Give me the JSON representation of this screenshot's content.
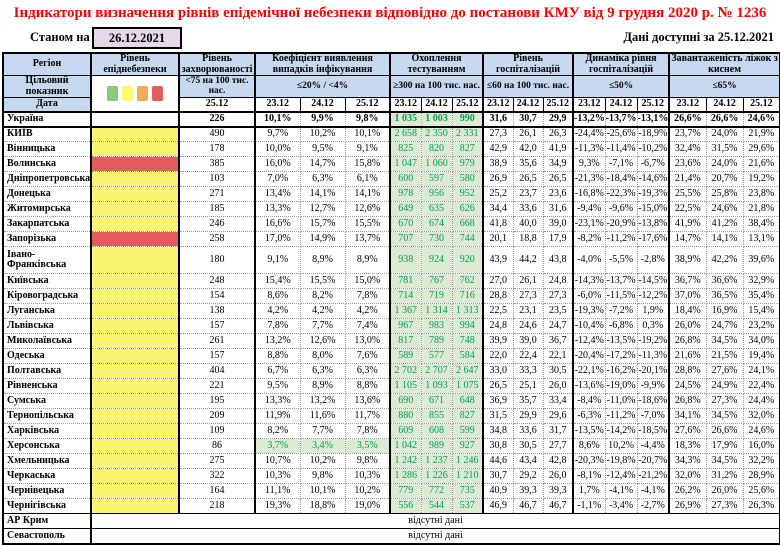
{
  "title": "Індикатори визначення рівнів епідемічної небезпеки відповідно до постанови КМУ від 9 грудня 2020 р. № 1236",
  "as_of": {
    "label": "Станом на",
    "date": "26.12.2021"
  },
  "data_available": "Дані доступні за 25.12.2021",
  "colors": {
    "title_red": "#ff0000",
    "header_bg": "#c6d9f1",
    "date_box_bg": "#e6d9ec",
    "danger_yellow": "#f9f56e",
    "danger_red": "#e25c5c",
    "met_target_bg": "#dcead3",
    "met_target_text": "#00a050",
    "legend": [
      "#8cc87c",
      "#fbf96e",
      "#f4a95c",
      "#e25d5d"
    ]
  },
  "table": {
    "region_label": "Регіон",
    "target_row_label": "Цільовий показник",
    "date_row_label": "Дата",
    "no_data_text": "відсутні дані",
    "legend_names": [
      "green-level",
      "yellow-level",
      "orange-level",
      "red-level"
    ],
    "groups": [
      {
        "id": "danger",
        "label": "Рівень епіднебезпеки",
        "target": "",
        "dates": []
      },
      {
        "id": "incidence",
        "label": "Рівень захворюваності",
        "target": "<75 на 100 тис. нас.",
        "dates": [
          "25.12"
        ]
      },
      {
        "id": "coef",
        "label": "Коефіцієнт виявлення випадків інфікування",
        "target": "≤20% / <4%",
        "dates": [
          "23.12",
          "24.12",
          "25.12"
        ]
      },
      {
        "id": "testing",
        "label": "Охоплення тестуванням",
        "target": "≥300 на 100 тис. нас.",
        "dates": [
          "23.12",
          "24.12",
          "25.12"
        ]
      },
      {
        "id": "hosp",
        "label": "Рівень госпіталізацій",
        "target": "≤60 на 100 тис. нас.",
        "dates": [
          "23.12",
          "24.12",
          "25.12"
        ]
      },
      {
        "id": "dyn",
        "label": "Динаміка рівня госпіталізацій",
        "target": "≤50%",
        "dates": [
          "23.12",
          "24.12",
          "25.12"
        ]
      },
      {
        "id": "beds",
        "label": "Завантаженість ліжок з киснем",
        "target": "≤65%",
        "dates": [
          "23.12",
          "24.12",
          "25.12"
        ]
      }
    ],
    "rows": [
      {
        "region": "Україна",
        "danger": "none",
        "total": true,
        "incidence": "226",
        "coef": [
          "10,1%",
          "9,9%",
          "9,8%"
        ],
        "testing": [
          "1 035",
          "1 003",
          "990"
        ],
        "hosp": [
          "31,6",
          "30,7",
          "29,9"
        ],
        "dyn": [
          "-13,2%",
          "-13,7%",
          "-13,1%"
        ],
        "beds": [
          "26,6%",
          "26,6%",
          "24,6%"
        ]
      },
      {
        "region": "КИЇВ",
        "danger": "yellow",
        "incidence": "490",
        "coef": [
          "9,7%",
          "10,2%",
          "10,1%"
        ],
        "testing": [
          "2 658",
          "2 350",
          "2 331"
        ],
        "hosp": [
          "27,3",
          "26,1",
          "26,3"
        ],
        "dyn": [
          "-24,4%",
          "-25,6%",
          "-18,9%"
        ],
        "beds": [
          "23,7%",
          "24,0%",
          "21,9%"
        ]
      },
      {
        "region": "Вінницька",
        "danger": "yellow",
        "incidence": "178",
        "coef": [
          "10,0%",
          "9,5%",
          "9,1%"
        ],
        "testing": [
          "825",
          "820",
          "827"
        ],
        "hosp": [
          "42,9",
          "42,0",
          "41,9"
        ],
        "dyn": [
          "-11,3%",
          "-11,4%",
          "-10,2%"
        ],
        "beds": [
          "32,4%",
          "31,5%",
          "29,6%"
        ]
      },
      {
        "region": "Волинська",
        "danger": "red",
        "incidence": "385",
        "coef": [
          "16,0%",
          "14,7%",
          "15,8%"
        ],
        "testing": [
          "1 047",
          "1 060",
          "979"
        ],
        "hosp": [
          "38,9",
          "35,6",
          "34,9"
        ],
        "dyn": [
          "9,3%",
          "-7,1%",
          "-6,7%"
        ],
        "beds": [
          "23,6%",
          "24,0%",
          "21,6%"
        ]
      },
      {
        "region": "Дніпропетровська",
        "danger": "yellow",
        "incidence": "103",
        "coef": [
          "7,0%",
          "6,3%",
          "6,1%"
        ],
        "testing": [
          "600",
          "597",
          "580"
        ],
        "hosp": [
          "26,9",
          "26,5",
          "26,5"
        ],
        "dyn": [
          "-21,3%",
          "-18,4%",
          "-14,6%"
        ],
        "beds": [
          "21,4%",
          "20,7%",
          "19,2%"
        ]
      },
      {
        "region": "Донецька",
        "danger": "yellow",
        "incidence": "271",
        "coef": [
          "13,4%",
          "14,1%",
          "14,1%"
        ],
        "testing": [
          "978",
          "956",
          "952"
        ],
        "hosp": [
          "25,2",
          "23,7",
          "23,6"
        ],
        "dyn": [
          "-16,8%",
          "-22,3%",
          "-19,3%"
        ],
        "beds": [
          "25,5%",
          "25,8%",
          "23,8%"
        ]
      },
      {
        "region": "Житомирська",
        "danger": "yellow",
        "incidence": "185",
        "coef": [
          "13,3%",
          "12,7%",
          "12,6%"
        ],
        "testing": [
          "649",
          "635",
          "626"
        ],
        "hosp": [
          "34,4",
          "33,6",
          "31,6"
        ],
        "dyn": [
          "-9,4%",
          "-9,6%",
          "-15,0%"
        ],
        "beds": [
          "22,5%",
          "24,6%",
          "21,8%"
        ]
      },
      {
        "region": "Закарпатська",
        "danger": "yellow",
        "incidence": "246",
        "coef": [
          "16,6%",
          "15,7%",
          "15,5%"
        ],
        "testing": [
          "670",
          "674",
          "668"
        ],
        "hosp": [
          "41,8",
          "40,0",
          "39,0"
        ],
        "dyn": [
          "-23,1%",
          "-20,9%",
          "-13,8%"
        ],
        "beds": [
          "41,9%",
          "41,2%",
          "38,4%"
        ]
      },
      {
        "region": "Запорізька",
        "danger": "red",
        "incidence": "258",
        "coef": [
          "17,0%",
          "14,9%",
          "13,7%"
        ],
        "testing": [
          "707",
          "730",
          "744"
        ],
        "hosp": [
          "20,1",
          "18,8",
          "17,9"
        ],
        "dyn": [
          "-8,2%",
          "-11,2%",
          "-17,6%"
        ],
        "beds": [
          "14,7%",
          "14,1%",
          "13,1%"
        ]
      },
      {
        "region": "Івано-Франківська",
        "danger": "yellow",
        "tall": true,
        "incidence": "180",
        "coef": [
          "9,1%",
          "8,9%",
          "8,9%"
        ],
        "testing": [
          "938",
          "924",
          "920"
        ],
        "hosp": [
          "43,9",
          "44,2",
          "43,8"
        ],
        "dyn": [
          "-4,0%",
          "-5,5%",
          "-2,8%"
        ],
        "beds": [
          "38,9%",
          "42,2%",
          "39,6%"
        ]
      },
      {
        "region": "Київська",
        "danger": "yellow",
        "incidence": "248",
        "coef": [
          "15,4%",
          "15,5%",
          "15,0%"
        ],
        "testing": [
          "781",
          "767",
          "762"
        ],
        "hosp": [
          "27,0",
          "26,1",
          "24,8"
        ],
        "dyn": [
          "-14,3%",
          "-13,7%",
          "-14,5%"
        ],
        "beds": [
          "36,7%",
          "36,6%",
          "32,9%"
        ]
      },
      {
        "region": "Кіровоградська",
        "danger": "yellow",
        "incidence": "154",
        "coef": [
          "8,6%",
          "8,2%",
          "7,8%"
        ],
        "testing": [
          "714",
          "719",
          "716"
        ],
        "hosp": [
          "28,8",
          "27,3",
          "27,3"
        ],
        "dyn": [
          "-6,0%",
          "-11,5%",
          "-12,2%"
        ],
        "beds": [
          "37,0%",
          "36,5%",
          "35,4%"
        ]
      },
      {
        "region": "Луганська",
        "danger": "yellow",
        "incidence": "138",
        "coef": [
          "4,2%",
          "4,2%",
          "4,2%"
        ],
        "testing": [
          "1 367",
          "1 314",
          "1 313"
        ],
        "hosp": [
          "22,5",
          "23,1",
          "23,5"
        ],
        "dyn": [
          "-19,3%",
          "-7,2%",
          "1,9%"
        ],
        "beds": [
          "18,4%",
          "16,9%",
          "15,4%"
        ]
      },
      {
        "region": "Львівська",
        "danger": "yellow",
        "incidence": "157",
        "coef": [
          "7,8%",
          "7,7%",
          "7,4%"
        ],
        "testing": [
          "967",
          "983",
          "994"
        ],
        "hosp": [
          "24,8",
          "24,6",
          "24,7"
        ],
        "dyn": [
          "-10,4%",
          "-6,8%",
          "0,3%"
        ],
        "beds": [
          "26,0%",
          "24,7%",
          "23,2%"
        ]
      },
      {
        "region": "Миколаївська",
        "danger": "yellow",
        "incidence": "261",
        "coef": [
          "13,2%",
          "12,6%",
          "13,0%"
        ],
        "testing": [
          "817",
          "789",
          "748"
        ],
        "hosp": [
          "39,9",
          "39,0",
          "36,7"
        ],
        "dyn": [
          "-12,4%",
          "-13,5%",
          "-19,2%"
        ],
        "beds": [
          "26,8%",
          "34,5%",
          "34,0%"
        ]
      },
      {
        "region": "Одеська",
        "danger": "yellow",
        "incidence": "157",
        "coef": [
          "8,8%",
          "8,0%",
          "7,6%"
        ],
        "testing": [
          "589",
          "577",
          "584"
        ],
        "hosp": [
          "22,0",
          "22,4",
          "22,1"
        ],
        "dyn": [
          "-20,4%",
          "-17,2%",
          "-11,3%"
        ],
        "beds": [
          "21,6%",
          "21,5%",
          "19,4%"
        ]
      },
      {
        "region": "Полтавська",
        "danger": "yellow",
        "incidence": "404",
        "coef": [
          "6,7%",
          "6,3%",
          "6,3%"
        ],
        "testing": [
          "2 702",
          "2 707",
          "2 647"
        ],
        "hosp": [
          "33,0",
          "33,3",
          "30,5"
        ],
        "dyn": [
          "-22,1%",
          "-16,2%",
          "-20,1%"
        ],
        "beds": [
          "28,8%",
          "27,6%",
          "24,1%"
        ]
      },
      {
        "region": "Рівненська",
        "danger": "yellow",
        "incidence": "221",
        "coef": [
          "9,5%",
          "8,9%",
          "8,8%"
        ],
        "testing": [
          "1 105",
          "1 093",
          "1 075"
        ],
        "hosp": [
          "26,5",
          "25,1",
          "26,0"
        ],
        "dyn": [
          "-13,6%",
          "-19,0%",
          "-9,9%"
        ],
        "beds": [
          "24,5%",
          "24,9%",
          "22,4%"
        ]
      },
      {
        "region": "Сумська",
        "danger": "yellow",
        "incidence": "195",
        "coef": [
          "13,3%",
          "13,2%",
          "13,6%"
        ],
        "testing": [
          "690",
          "671",
          "648"
        ],
        "hosp": [
          "36,9",
          "35,7",
          "33,4"
        ],
        "dyn": [
          "-8,4%",
          "-11,0%",
          "-18,6%"
        ],
        "beds": [
          "26,8%",
          "27,3%",
          "24,4%"
        ]
      },
      {
        "region": "Тернопільська",
        "danger": "yellow",
        "incidence": "209",
        "coef": [
          "11,9%",
          "11,6%",
          "11,7%"
        ],
        "testing": [
          "880",
          "855",
          "827"
        ],
        "hosp": [
          "31,5",
          "29,9",
          "29,6"
        ],
        "dyn": [
          "-6,3%",
          "-11,2%",
          "-7,0%"
        ],
        "beds": [
          "34,1%",
          "34,5%",
          "32,0%"
        ]
      },
      {
        "region": "Харківська",
        "danger": "yellow",
        "incidence": "109",
        "coef": [
          "8,2%",
          "7,7%",
          "7,8%"
        ],
        "testing": [
          "609",
          "608",
          "599"
        ],
        "hosp": [
          "34,8",
          "33,6",
          "31,7"
        ],
        "dyn": [
          "-13,5%",
          "-14,2%",
          "-18,5%"
        ],
        "beds": [
          "27,6%",
          "26,6%",
          "24,6%"
        ]
      },
      {
        "region": "Херсонська",
        "danger": "yellow",
        "coef_green": true,
        "incidence": "86",
        "coef": [
          "3,7%",
          "3,4%",
          "3,5%"
        ],
        "testing": [
          "1 042",
          "989",
          "927"
        ],
        "hosp": [
          "30,8",
          "30,5",
          "27,7"
        ],
        "dyn": [
          "8,6%",
          "10,2%",
          "-4,4%"
        ],
        "beds": [
          "18,3%",
          "17,9%",
          "16,0%"
        ]
      },
      {
        "region": "Хмельницька",
        "danger": "yellow",
        "incidence": "275",
        "coef": [
          "10,7%",
          "10,2%",
          "9,8%"
        ],
        "testing": [
          "1 242",
          "1 237",
          "1 246"
        ],
        "hosp": [
          "44,6",
          "43,4",
          "42,8"
        ],
        "dyn": [
          "-20,3%",
          "-19,8%",
          "-20,7%"
        ],
        "beds": [
          "34,3%",
          "34,5%",
          "32,2%"
        ]
      },
      {
        "region": "Черкаська",
        "danger": "yellow",
        "incidence": "322",
        "coef": [
          "10,3%",
          "9,8%",
          "10,3%"
        ],
        "testing": [
          "1 286",
          "1 226",
          "1 210"
        ],
        "hosp": [
          "30,7",
          "29,2",
          "26,0"
        ],
        "dyn": [
          "-8,1%",
          "-12,4%",
          "-21,2%"
        ],
        "beds": [
          "32,0%",
          "31,2%",
          "28,9%"
        ]
      },
      {
        "region": "Чернівецька",
        "danger": "yellow",
        "incidence": "164",
        "coef": [
          "11,1%",
          "10,1%",
          "10,2%"
        ],
        "testing": [
          "779",
          "772",
          "735"
        ],
        "hosp": [
          "40,9",
          "39,3",
          "39,3"
        ],
        "dyn": [
          "1,7%",
          "-4,1%",
          "-4,1%"
        ],
        "beds": [
          "26,2%",
          "26,0%",
          "25,6%"
        ]
      },
      {
        "region": "Чернігівська",
        "danger": "yellow",
        "incidence": "218",
        "coef": [
          "19,3%",
          "18,8%",
          "19,0%"
        ],
        "testing": [
          "556",
          "544",
          "537"
        ],
        "hosp": [
          "46,9",
          "46,7",
          "46,7"
        ],
        "dyn": [
          "-1,1%",
          "-3,4%",
          "-2,7%"
        ],
        "beds": [
          "26,9%",
          "27,3%",
          "26,3%"
        ]
      },
      {
        "region": "АР Крим",
        "no_data": true
      },
      {
        "region": "Севастополь",
        "no_data": true
      }
    ]
  }
}
